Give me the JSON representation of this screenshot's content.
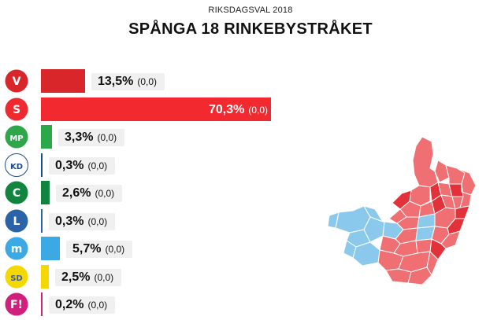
{
  "header": {
    "supertitle": "RIKSDAGSVAL 2018",
    "title": "SPÅNGA 18 RINKEBYSTRÅKET"
  },
  "chart_data": {
    "type": "bar",
    "orientation": "horizontal",
    "value_unit": "%",
    "xlim": [
      0,
      70.3
    ],
    "series": [
      {
        "values": [
          13.5,
          70.3,
          3.3,
          0.3,
          2.6,
          0.3,
          5.7,
          2.5,
          0.2
        ],
        "value_labels": [
          "13,5%",
          "70,3%",
          "3,3%",
          "0,3%",
          "2,6%",
          "0,3%",
          "5,7%",
          "2,5%",
          "0,2%"
        ],
        "change_labels": [
          "(0,0)",
          "(0,0)",
          "(0,0)",
          "(0,0)",
          "(0,0)",
          "(0,0)",
          "(0,0)",
          "(0,0)",
          "(0,0)"
        ]
      }
    ],
    "parties": [
      {
        "key": "v",
        "logo_text": "V",
        "color": "#d9262b",
        "bar_color": "#d9262b",
        "icon": "v-party-logo"
      },
      {
        "key": "s",
        "logo_text": "S",
        "color": "#ee2a2f",
        "bar_color": "#f22a2f",
        "icon": "s-rose-logo"
      },
      {
        "key": "mp",
        "logo_text": "MP",
        "color": "#2ea64a",
        "bar_color": "#2aa84a",
        "icon": "mp-sunflower-logo"
      },
      {
        "key": "kd",
        "logo_text": "KD",
        "color": "#1e4b8d",
        "bar_color": "#1e4b8d",
        "icon": "kd-logo"
      },
      {
        "key": "c",
        "logo_text": "C",
        "color": "#11843f",
        "bar_color": "#11843f",
        "icon": "c-clover-logo"
      },
      {
        "key": "l",
        "logo_text": "L",
        "color": "#2b63a8",
        "bar_color": "#2b63a8",
        "icon": "l-logo"
      },
      {
        "key": "m",
        "logo_text": "m",
        "color": "#3ba9e4",
        "bar_color": "#3ba9e4",
        "icon": "m-logo"
      },
      {
        "key": "sd",
        "logo_text": "SD",
        "color": "#f4d800",
        "bar_color": "#f4d800",
        "icon": "sd-flower-logo"
      },
      {
        "key": "fi",
        "logo_text": "F!",
        "color": "#d1207c",
        "bar_color": "#d1207c",
        "icon": "fi-logo"
      }
    ]
  },
  "map": {
    "red_light": "#ef6f73",
    "red_dark": "#e23138",
    "blue_light": "#8bc9ec",
    "border": "#ffffff"
  }
}
